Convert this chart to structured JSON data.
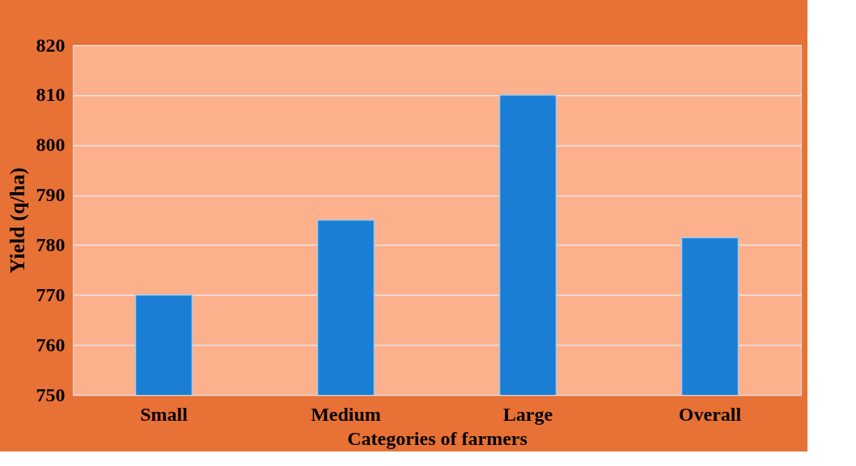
{
  "chart_data": {
    "type": "bar",
    "xlabel": "Categories of farmers",
    "ylabel": "Yield (q/ha)",
    "categories": [
      "Small",
      "Medium",
      "Large",
      "Overall"
    ],
    "values": [
      770,
      785,
      810,
      781.5
    ],
    "color": "#1a7fd4",
    "ylim": [
      750,
      820
    ],
    "yticks": [
      750,
      760,
      770,
      780,
      790,
      800,
      810,
      820
    ],
    "grid": "y"
  }
}
